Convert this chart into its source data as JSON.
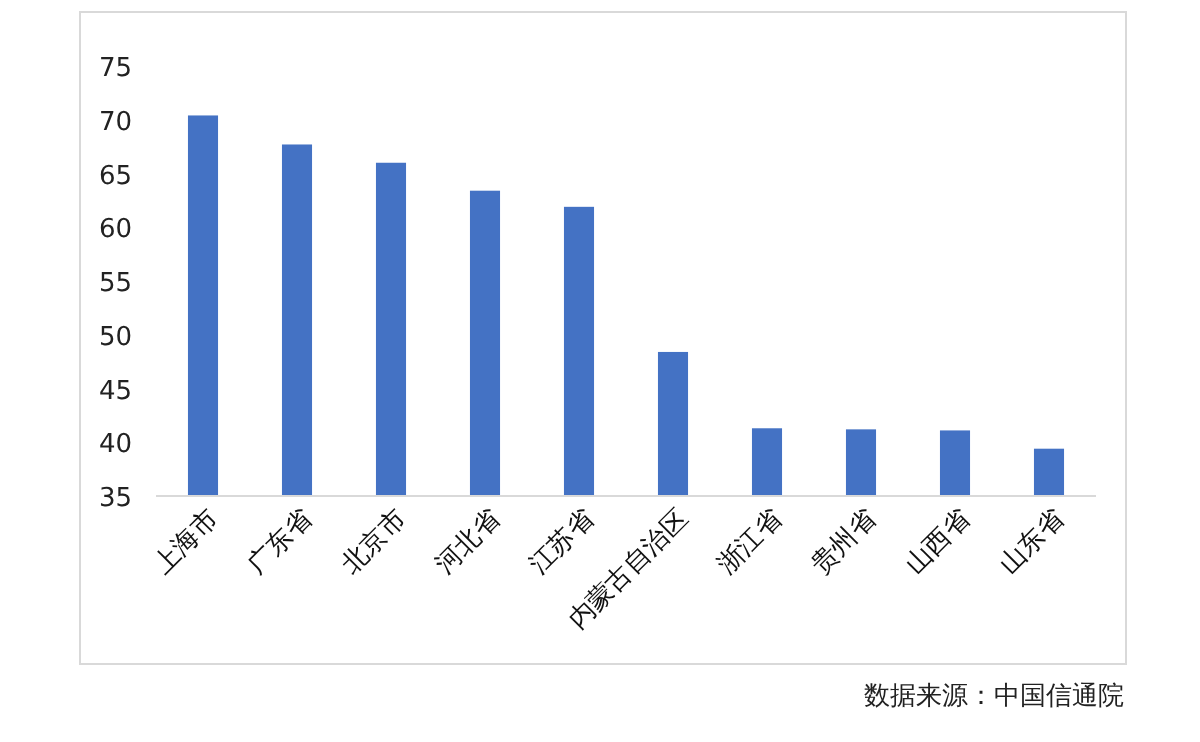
{
  "chart_data": {
    "type": "bar",
    "categories": [
      "上海市",
      "广东省",
      "北京市",
      "河北省",
      "江苏省",
      "内蒙古自治区",
      "浙江省",
      "贵州省",
      "山西省",
      "山东省"
    ],
    "values": [
      70.4,
      67.7,
      66.0,
      63.4,
      61.9,
      48.4,
      41.3,
      41.2,
      41.1,
      39.4
    ],
    "color": "#4472c4",
    "ylim": [
      35,
      75
    ],
    "yticks": [
      35,
      40,
      45,
      50,
      55,
      60,
      65,
      70,
      75
    ],
    "grid": false,
    "annotations": [
      "数据来源：中国信通院"
    ]
  }
}
